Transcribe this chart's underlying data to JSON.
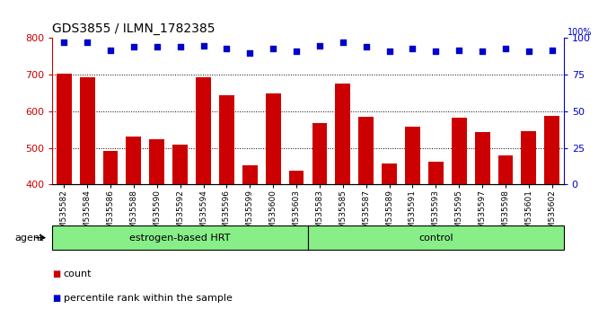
{
  "title": "GDS3855 / ILMN_1782385",
  "samples": [
    "GSM535582",
    "GSM535584",
    "GSM535586",
    "GSM535588",
    "GSM535590",
    "GSM535592",
    "GSM535594",
    "GSM535596",
    "GSM535599",
    "GSM535600",
    "GSM535603",
    "GSM535583",
    "GSM535585",
    "GSM535587",
    "GSM535589",
    "GSM535591",
    "GSM535593",
    "GSM535595",
    "GSM535597",
    "GSM535598",
    "GSM535601",
    "GSM535602"
  ],
  "bar_values": [
    703,
    693,
    492,
    530,
    524,
    508,
    693,
    644,
    453,
    650,
    438,
    567,
    675,
    585,
    458,
    558,
    463,
    583,
    543,
    480,
    545,
    588
  ],
  "percentile_values": [
    97,
    97,
    92,
    94,
    94,
    94,
    95,
    93,
    90,
    93,
    91,
    95,
    97,
    94,
    91,
    93,
    91,
    92,
    91,
    93,
    91,
    92
  ],
  "bar_color": "#cc0000",
  "dot_color": "#0000cc",
  "ylim_left": [
    400,
    800
  ],
  "ylim_right": [
    0,
    100
  ],
  "yticks_left": [
    400,
    500,
    600,
    700,
    800
  ],
  "yticks_right": [
    0,
    25,
    50,
    75,
    100
  ],
  "grid_ticks": [
    500,
    600,
    700
  ],
  "group1_label": "estrogen-based HRT",
  "group2_label": "control",
  "group1_count": 11,
  "group2_count": 11,
  "agent_label": "agent",
  "legend_count_label": "count",
  "legend_pct_label": "percentile rank within the sample",
  "background_color": "#ffffff",
  "tick_label_fontsize": 6.5,
  "title_fontsize": 10,
  "bar_width": 0.65,
  "group_band_color": "#88ee88",
  "group_band_border_color": "#000000"
}
